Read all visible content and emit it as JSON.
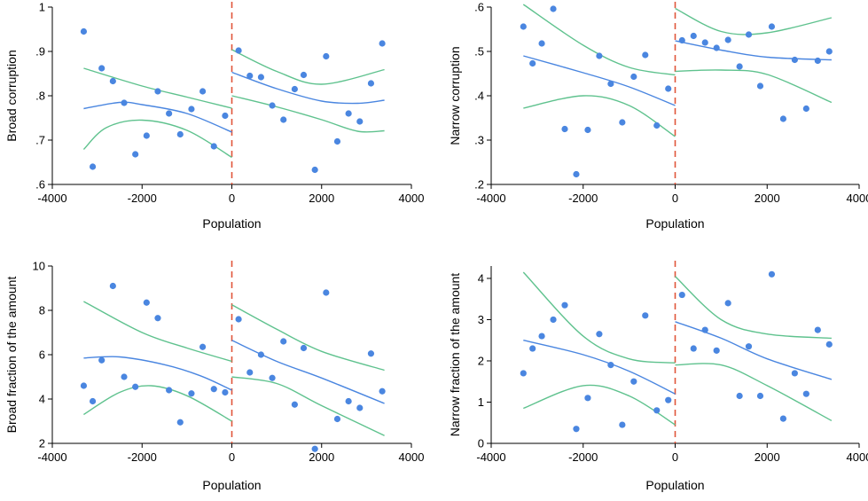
{
  "colors": {
    "points": "#4a86e0",
    "fit": "#4a86e0",
    "ci": "#5fc28e",
    "cutoff": "#e0553a"
  },
  "chart_data": [
    {
      "type": "scatter",
      "xlabel": "Population",
      "ylabel": "Broad corruption",
      "xlim": [
        -4000,
        4000
      ],
      "ylim": [
        0.6,
        1.0
      ],
      "xticks": [
        -4000,
        -2000,
        0,
        2000,
        4000
      ],
      "xtick_labels": [
        "-4000",
        "-2000",
        "0",
        "2000",
        "4000"
      ],
      "yticks": [
        0.6,
        0.7,
        0.8,
        0.9,
        1.0
      ],
      "ytick_labels": [
        ".6",
        ".7",
        ".8",
        ".9",
        "1"
      ],
      "cutoff": 0,
      "points": [
        [
          -3300,
          0.945
        ],
        [
          -3100,
          0.64
        ],
        [
          -2900,
          0.862
        ],
        [
          -2650,
          0.833
        ],
        [
          -2400,
          0.784
        ],
        [
          -2150,
          0.668
        ],
        [
          -1900,
          0.71
        ],
        [
          -1650,
          0.81
        ],
        [
          -1400,
          0.76
        ],
        [
          -1150,
          0.713
        ],
        [
          -900,
          0.77
        ],
        [
          -650,
          0.81
        ],
        [
          -400,
          0.686
        ],
        [
          -150,
          0.755
        ],
        [
          150,
          0.902
        ],
        [
          400,
          0.845
        ],
        [
          650,
          0.842
        ],
        [
          900,
          0.778
        ],
        [
          1150,
          0.746
        ],
        [
          1400,
          0.815
        ],
        [
          1600,
          0.847
        ],
        [
          1850,
          0.633
        ],
        [
          2100,
          0.889
        ],
        [
          2350,
          0.697
        ],
        [
          2600,
          0.76
        ],
        [
          2850,
          0.742
        ],
        [
          3100,
          0.828
        ],
        [
          3350,
          0.918
        ]
      ],
      "fit_left": [
        [
          -3300,
          0.771
        ],
        [
          -2500,
          0.785
        ],
        [
          -2000,
          0.78
        ],
        [
          -1000,
          0.76
        ],
        [
          0,
          0.718
        ]
      ],
      "ci_upper_left": [
        [
          -3300,
          0.862
        ],
        [
          -2000,
          0.822
        ],
        [
          -1000,
          0.797
        ],
        [
          0,
          0.772
        ]
      ],
      "ci_lower_left": [
        [
          -3300,
          0.679
        ],
        [
          -2800,
          0.728
        ],
        [
          -2000,
          0.745
        ],
        [
          -1000,
          0.722
        ],
        [
          0,
          0.661
        ]
      ],
      "fit_right": [
        [
          0,
          0.853
        ],
        [
          1000,
          0.816
        ],
        [
          2000,
          0.788
        ],
        [
          2800,
          0.783
        ],
        [
          3400,
          0.79
        ]
      ],
      "ci_upper_right": [
        [
          0,
          0.904
        ],
        [
          1000,
          0.855
        ],
        [
          2000,
          0.826
        ],
        [
          3400,
          0.859
        ]
      ],
      "ci_lower_right": [
        [
          0,
          0.8
        ],
        [
          1000,
          0.775
        ],
        [
          2000,
          0.746
        ],
        [
          2800,
          0.72
        ],
        [
          3400,
          0.721
        ]
      ]
    },
    {
      "type": "scatter",
      "xlabel": "Population",
      "ylabel": "Narrow corruption",
      "xlim": [
        -4000,
        4000
      ],
      "ylim": [
        0.2,
        0.6
      ],
      "xticks": [
        -4000,
        -2000,
        0,
        2000,
        4000
      ],
      "xtick_labels": [
        "-4000",
        "-2000",
        "0",
        "2000",
        "4000"
      ],
      "yticks": [
        0.2,
        0.3,
        0.4,
        0.5,
        0.6
      ],
      "ytick_labels": [
        ".2",
        ".3",
        ".4",
        ".5",
        ".6"
      ],
      "cutoff": 0,
      "points": [
        [
          -3300,
          0.556
        ],
        [
          -3100,
          0.473
        ],
        [
          -2900,
          0.518
        ],
        [
          -2650,
          0.596
        ],
        [
          -2400,
          0.325
        ],
        [
          -2150,
          0.223
        ],
        [
          -1900,
          0.323
        ],
        [
          -1650,
          0.49
        ],
        [
          -1400,
          0.427
        ],
        [
          -1150,
          0.34
        ],
        [
          -900,
          0.443
        ],
        [
          -650,
          0.492
        ],
        [
          -400,
          0.333
        ],
        [
          -150,
          0.416
        ],
        [
          150,
          0.525
        ],
        [
          400,
          0.535
        ],
        [
          650,
          0.52
        ],
        [
          900,
          0.508
        ],
        [
          1150,
          0.526
        ],
        [
          1400,
          0.466
        ],
        [
          1600,
          0.538
        ],
        [
          1850,
          0.422
        ],
        [
          2100,
          0.556
        ],
        [
          2350,
          0.348
        ],
        [
          2600,
          0.481
        ],
        [
          2850,
          0.371
        ],
        [
          3100,
          0.479
        ],
        [
          3350,
          0.5
        ]
      ],
      "fit_left": [
        [
          -3300,
          0.49
        ],
        [
          -2000,
          0.452
        ],
        [
          -1000,
          0.42
        ],
        [
          0,
          0.378
        ]
      ],
      "ci_upper_left": [
        [
          -3300,
          0.606
        ],
        [
          -2000,
          0.514
        ],
        [
          -1000,
          0.464
        ],
        [
          0,
          0.447
        ]
      ],
      "ci_lower_left": [
        [
          -3300,
          0.372
        ],
        [
          -2000,
          0.4
        ],
        [
          -1000,
          0.378
        ],
        [
          0,
          0.308
        ]
      ],
      "fit_right": [
        [
          0,
          0.524
        ],
        [
          1000,
          0.503
        ],
        [
          2000,
          0.487
        ],
        [
          3400,
          0.481
        ]
      ],
      "ci_upper_right": [
        [
          0,
          0.597
        ],
        [
          1000,
          0.545
        ],
        [
          2000,
          0.542
        ],
        [
          3400,
          0.576
        ]
      ],
      "ci_lower_right": [
        [
          0,
          0.455
        ],
        [
          1000,
          0.458
        ],
        [
          2000,
          0.448
        ],
        [
          3400,
          0.385
        ]
      ]
    },
    {
      "type": "scatter",
      "xlabel": "Population",
      "ylabel": "Broad fraction of the amount",
      "xlim": [
        -4000,
        4000
      ],
      "ylim": [
        2,
        10
      ],
      "xticks": [
        -4000,
        -2000,
        0,
        2000,
        4000
      ],
      "xtick_labels": [
        "-4000",
        "-2000",
        "0",
        "2000",
        "4000"
      ],
      "yticks": [
        2,
        4,
        6,
        8,
        10
      ],
      "ytick_labels": [
        "2",
        "4",
        "6",
        "8",
        "10"
      ],
      "cutoff": 0,
      "points": [
        [
          -3300,
          4.6
        ],
        [
          -3100,
          3.9
        ],
        [
          -2900,
          5.75
        ],
        [
          -2650,
          9.1
        ],
        [
          -2400,
          5.0
        ],
        [
          -2150,
          4.55
        ],
        [
          -1900,
          8.35
        ],
        [
          -1650,
          7.65
        ],
        [
          -1400,
          4.4
        ],
        [
          -1150,
          2.95
        ],
        [
          -900,
          4.25
        ],
        [
          -650,
          6.35
        ],
        [
          -400,
          4.45
        ],
        [
          -150,
          4.3
        ],
        [
          150,
          7.6
        ],
        [
          400,
          5.2
        ],
        [
          650,
          6.0
        ],
        [
          900,
          4.95
        ],
        [
          1150,
          6.6
        ],
        [
          1400,
          3.75
        ],
        [
          1600,
          6.3
        ],
        [
          1850,
          1.75
        ],
        [
          2100,
          8.8
        ],
        [
          2350,
          3.1
        ],
        [
          2600,
          3.9
        ],
        [
          2850,
          3.6
        ],
        [
          3100,
          6.05
        ],
        [
          3350,
          4.35
        ]
      ],
      "fit_left": [
        [
          -3300,
          5.85
        ],
        [
          -2500,
          5.9
        ],
        [
          -1500,
          5.55
        ],
        [
          -700,
          5.05
        ],
        [
          0,
          4.4
        ]
      ],
      "ci_upper_left": [
        [
          -3300,
          8.4
        ],
        [
          -2000,
          7.0
        ],
        [
          -1000,
          6.3
        ],
        [
          0,
          5.7
        ]
      ],
      "ci_lower_left": [
        [
          -3300,
          3.3
        ],
        [
          -2500,
          4.3
        ],
        [
          -1800,
          4.6
        ],
        [
          -1000,
          4.15
        ],
        [
          0,
          3.0
        ]
      ],
      "fit_right": [
        [
          0,
          6.65
        ],
        [
          1000,
          5.7
        ],
        [
          2000,
          4.95
        ],
        [
          3400,
          3.8
        ]
      ],
      "ci_upper_right": [
        [
          0,
          8.25
        ],
        [
          1000,
          7.15
        ],
        [
          2000,
          6.15
        ],
        [
          3400,
          5.3
        ]
      ],
      "ci_lower_right": [
        [
          0,
          5.0
        ],
        [
          1000,
          4.7
        ],
        [
          2000,
          3.7
        ],
        [
          3400,
          2.35
        ]
      ]
    },
    {
      "type": "scatter",
      "xlabel": "Population",
      "ylabel": "Narrow fraction of the amount",
      "xlim": [
        -4000,
        4000
      ],
      "ylim": [
        0,
        4.3
      ],
      "xticks": [
        -4000,
        -2000,
        0,
        2000,
        4000
      ],
      "xtick_labels": [
        "-4000",
        "-2000",
        "0",
        "2000",
        "4000"
      ],
      "yticks": [
        0,
        1,
        2,
        3,
        4
      ],
      "ytick_labels": [
        "0",
        "1",
        "2",
        "3",
        "4"
      ],
      "cutoff": 0,
      "points": [
        [
          -3300,
          1.7
        ],
        [
          -3100,
          2.3
        ],
        [
          -2900,
          2.6
        ],
        [
          -2650,
          3.0
        ],
        [
          -2400,
          3.35
        ],
        [
          -2150,
          0.35
        ],
        [
          -1900,
          1.1
        ],
        [
          -1650,
          2.65
        ],
        [
          -1400,
          1.9
        ],
        [
          -1150,
          0.45
        ],
        [
          -900,
          1.5
        ],
        [
          -650,
          3.1
        ],
        [
          -400,
          0.8
        ],
        [
          -150,
          1.05
        ],
        [
          150,
          3.6
        ],
        [
          400,
          2.3
        ],
        [
          650,
          2.75
        ],
        [
          900,
          2.25
        ],
        [
          1150,
          3.4
        ],
        [
          1400,
          1.15
        ],
        [
          1600,
          2.35
        ],
        [
          1850,
          1.15
        ],
        [
          2100,
          4.1
        ],
        [
          2350,
          0.6
        ],
        [
          2600,
          1.7
        ],
        [
          2850,
          1.2
        ],
        [
          3100,
          2.75
        ],
        [
          3350,
          2.4
        ]
      ],
      "fit_left": [
        [
          -3300,
          2.5
        ],
        [
          -2000,
          2.15
        ],
        [
          -1000,
          1.75
        ],
        [
          0,
          1.2
        ]
      ],
      "ci_upper_left": [
        [
          -3300,
          4.15
        ],
        [
          -2000,
          2.6
        ],
        [
          -1000,
          2.05
        ],
        [
          0,
          1.95
        ]
      ],
      "ci_lower_left": [
        [
          -3300,
          0.85
        ],
        [
          -2000,
          1.4
        ],
        [
          -1000,
          1.15
        ],
        [
          0,
          0.45
        ]
      ],
      "fit_right": [
        [
          0,
          2.95
        ],
        [
          1000,
          2.55
        ],
        [
          2000,
          2.05
        ],
        [
          3400,
          1.55
        ]
      ],
      "ci_upper_right": [
        [
          0,
          4.05
        ],
        [
          1000,
          3.0
        ],
        [
          2000,
          2.65
        ],
        [
          3400,
          2.55
        ]
      ],
      "ci_lower_right": [
        [
          0,
          1.9
        ],
        [
          1000,
          1.9
        ],
        [
          2000,
          1.4
        ],
        [
          3400,
          0.55
        ]
      ]
    }
  ]
}
